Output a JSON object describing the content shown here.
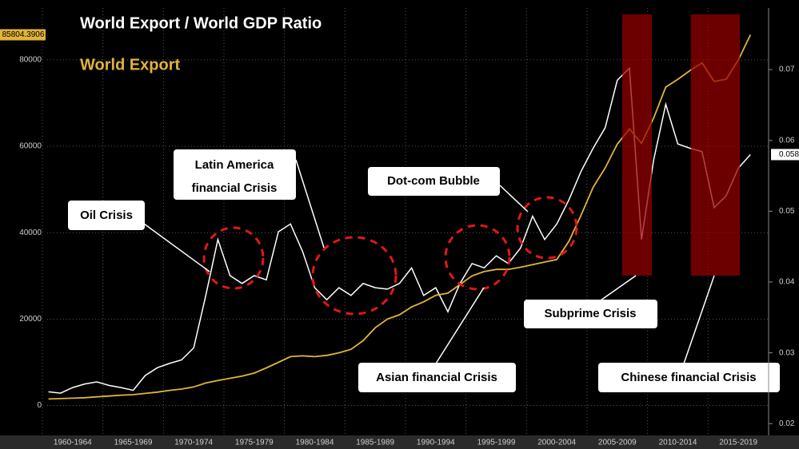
{
  "chart_data": {
    "type": "line",
    "categories": [
      "1960-1964",
      "1965-1969",
      "1970-1974",
      "1975-1979",
      "1980-1984",
      "1985-1989",
      "1990-1994",
      "1995-1999",
      "2000-2004",
      "2005-2009",
      "2010-2014",
      "2015-2019"
    ],
    "series": [
      {
        "name": "World Export / World GDP Ratio",
        "color": "#ffffff",
        "axis": "y2",
        "values": [
          [
            0.0245,
            0.0243,
            0.0251,
            0.0256,
            0.0259
          ],
          [
            0.0254,
            0.0251,
            0.0247,
            0.0268,
            0.0279
          ],
          [
            0.0285,
            0.029,
            0.0307,
            0.0381,
            0.046
          ],
          [
            0.0409,
            0.0398,
            0.0409,
            0.0403,
            0.0471
          ],
          [
            0.0482,
            0.0443,
            0.0392,
            0.0375,
            0.0392
          ],
          [
            0.0381,
            0.0398,
            0.0392,
            0.039,
            0.0398
          ],
          [
            0.042,
            0.0381,
            0.0392,
            0.0358,
            0.0398
          ],
          [
            0.0426,
            0.042,
            0.0437,
            0.0426,
            0.0448
          ],
          [
            0.0493,
            0.046,
            0.0482,
            0.0516,
            0.0556
          ],
          [
            0.0589,
            0.0618,
            0.0685,
            0.0702,
            0.046
          ],
          [
            0.0572,
            0.0651,
            0.0595,
            0.0589,
            0.0584
          ],
          [
            0.0505,
            0.0522,
            0.0561,
            0.058,
            null
          ]
        ]
      },
      {
        "name": "World Export",
        "color": "#e0b43a",
        "values": [
          [
            1500,
            1600,
            1700,
            1800,
            2000
          ],
          [
            2200,
            2400,
            2500,
            2800,
            3100
          ],
          [
            3500,
            3800,
            4300,
            5200,
            5800
          ],
          [
            6300,
            6800,
            7500,
            8700,
            10000
          ],
          [
            11300,
            11500,
            11300,
            11600,
            12200
          ],
          [
            13000,
            15000,
            18000,
            20000,
            21000
          ],
          [
            22800,
            24000,
            25500,
            26000,
            28000
          ],
          [
            30000,
            31000,
            31500,
            31500,
            32000
          ],
          [
            32600,
            33200,
            33800,
            38000,
            44000
          ],
          [
            50500,
            55000,
            60500,
            64000,
            60700
          ],
          [
            66500,
            73700,
            75500,
            77500,
            79300
          ],
          [
            75000,
            75500,
            80000,
            85804.3906,
            null
          ]
        ]
      }
    ],
    "ylim": [
      -6000,
      92000
    ],
    "yticks": [
      0,
      20000,
      40000,
      60000,
      80000
    ],
    "y2lim": [
      0.0189,
      0.0787
    ],
    "y2ticks": [
      0.02,
      0.03,
      0.04,
      0.05,
      0.06,
      0.07
    ],
    "grid": true,
    "annotations": [
      {
        "lines": [
          "Oil Crisis"
        ]
      },
      {
        "lines": [
          "Latin America",
          "financial Crisis"
        ]
      },
      {
        "lines": [
          "Dot-com Bubble"
        ]
      },
      {
        "lines": [
          "Subprime Crisis"
        ]
      },
      {
        "lines": [
          "Asian financial Crisis"
        ]
      },
      {
        "lines": [
          "Chinese financial Crisis"
        ]
      }
    ]
  }
}
